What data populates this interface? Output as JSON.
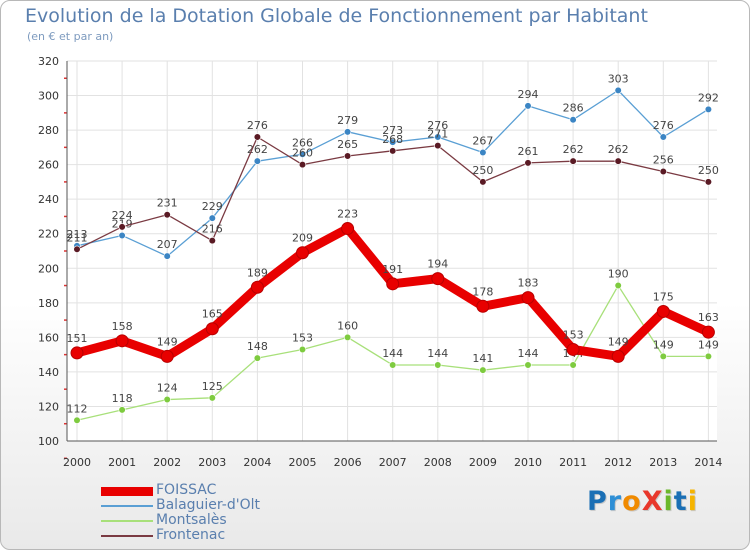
{
  "title": "Evolution de la Dotation Globale de Fonctionnement par Habitant",
  "subtitle": "(en € et par an)",
  "logo": {
    "text": "ProXiti",
    "colors": [
      "#1a6fb5",
      "#2e8fd6",
      "#f08a00",
      "#e8372b",
      "#6bb82b",
      "#1a6fb5",
      "#f5b400"
    ]
  },
  "chart_data": {
    "type": "line",
    "title": "Evolution de la Dotation Globale de Fonctionnement par Habitant",
    "subtitle": "(en € et par an)",
    "xlabel": "",
    "ylabel": "",
    "ylim": [
      100,
      320
    ],
    "yticks": [
      100,
      120,
      140,
      160,
      180,
      200,
      220,
      240,
      260,
      280,
      300,
      320
    ],
    "grid": true,
    "legend": "bottom-left",
    "x": [
      "2000",
      "2001",
      "2002",
      "2003",
      "2004",
      "2005",
      "2006",
      "2007",
      "2008",
      "2009",
      "2010",
      "2011",
      "2012",
      "2013",
      "2014"
    ],
    "series": [
      {
        "name": "FOISSAC",
        "color": "#e80000",
        "values": [
          151,
          158,
          149,
          165,
          189,
          209,
          223,
          191,
          194,
          178,
          183,
          153,
          149,
          175,
          163
        ]
      },
      {
        "name": "Balaguier-d'Olt",
        "color": "#5a9fd4",
        "marker": "#3b85c4",
        "values": [
          213,
          219,
          207,
          229,
          262,
          266,
          279,
          273,
          276,
          267,
          294,
          286,
          303,
          276,
          292
        ]
      },
      {
        "name": "Montsalès",
        "color": "#a8e07a",
        "marker": "#7ecb3f",
        "values": [
          112,
          118,
          124,
          125,
          148,
          153,
          160,
          144,
          144,
          141,
          144,
          144,
          190,
          149,
          149
        ]
      },
      {
        "name": "Frontenac",
        "color": "#7a3a42",
        "marker": "#5a1a24",
        "values": [
          211,
          224,
          231,
          216,
          276,
          260,
          265,
          268,
          271,
          250,
          261,
          262,
          262,
          256,
          250
        ]
      }
    ]
  }
}
